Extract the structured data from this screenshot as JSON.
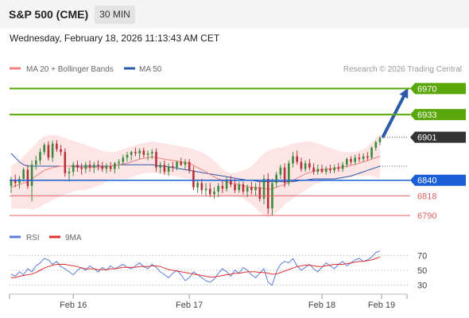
{
  "header": {
    "title": "S&P 500 (CME)",
    "interval": "30 MIN"
  },
  "timestamp": "Wednesday, February 18, 2026 11:13:43 AM CET",
  "legend": {
    "ma20_label": "MA 20 + Bollinger Bands",
    "ma50_label": "MA 50",
    "ma20_color": "#f08080",
    "ma50_color": "#2b5aa8"
  },
  "credit": "Research © 2026 Trading Central",
  "rsi_legend": {
    "rsi_label": "RSI",
    "ma9_label": "9MA",
    "rsi_color": "#5b7fd6",
    "ma9_color": "#e03030"
  },
  "colors": {
    "up_candle": "#3a8a3a",
    "down_candle": "#b8303a",
    "band_fill": "#fde0e0",
    "resistance": "#5aa70a",
    "support_blue": "#1a5fd6",
    "support_red": "#e06060",
    "current_price": "#333333",
    "arrow": "#2b5aa8"
  },
  "chart_data": [
    {
      "type": "candlestick",
      "title": "",
      "x_ticks": [
        "Feb 16",
        "Feb 17",
        "Feb 18",
        "Feb 19"
      ],
      "ylim": [
        6780,
        6985
      ],
      "levels": [
        {
          "value": 6970,
          "label": "6970",
          "kind": "resistance"
        },
        {
          "value": 6933,
          "label": "6933",
          "kind": "resistance"
        },
        {
          "value": 6901,
          "label": "6901",
          "kind": "current"
        },
        {
          "value": 6840,
          "label": "6840",
          "kind": "pivot"
        },
        {
          "value": 6818,
          "label": "6818",
          "kind": "support"
        },
        {
          "value": 6790,
          "label": "6790",
          "kind": "support"
        }
      ],
      "candles": [
        [
          6832,
          6845,
          6822,
          6840
        ],
        [
          6840,
          6848,
          6830,
          6836
        ],
        [
          6836,
          6846,
          6828,
          6842
        ],
        [
          6842,
          6858,
          6838,
          6855
        ],
        [
          6855,
          6862,
          6828,
          6832
        ],
        [
          6832,
          6868,
          6810,
          6862
        ],
        [
          6862,
          6875,
          6855,
          6868
        ],
        [
          6868,
          6885,
          6862,
          6880
        ],
        [
          6880,
          6893,
          6876,
          6890
        ],
        [
          6890,
          6895,
          6868,
          6872
        ],
        [
          6872,
          6896,
          6866,
          6892
        ],
        [
          6892,
          6897,
          6880,
          6884
        ],
        [
          6884,
          6890,
          6875,
          6880
        ],
        [
          6880,
          6885,
          6845,
          6850
        ],
        [
          6850,
          6858,
          6838,
          6852
        ],
        [
          6852,
          6866,
          6846,
          6862
        ],
        [
          6862,
          6868,
          6852,
          6858
        ],
        [
          6858,
          6864,
          6848,
          6856
        ],
        [
          6856,
          6866,
          6850,
          6862
        ],
        [
          6862,
          6868,
          6852,
          6858
        ],
        [
          6858,
          6866,
          6850,
          6862
        ],
        [
          6862,
          6868,
          6854,
          6860
        ],
        [
          6860,
          6866,
          6852,
          6856
        ],
        [
          6856,
          6864,
          6850,
          6860
        ],
        [
          6860,
          6866,
          6852,
          6856
        ],
        [
          6856,
          6866,
          6850,
          6864
        ],
        [
          6864,
          6870,
          6856,
          6866
        ],
        [
          6866,
          6876,
          6862,
          6872
        ],
        [
          6872,
          6880,
          6866,
          6876
        ],
        [
          6876,
          6882,
          6868,
          6880
        ],
        [
          6880,
          6886,
          6874,
          6878
        ],
        [
          6878,
          6885,
          6870,
          6882
        ],
        [
          6882,
          6886,
          6872,
          6876
        ],
        [
          6876,
          6882,
          6868,
          6878
        ],
        [
          6878,
          6884,
          6870,
          6880
        ],
        [
          6880,
          6885,
          6852,
          6858
        ],
        [
          6858,
          6866,
          6850,
          6862
        ],
        [
          6862,
          6868,
          6848,
          6852
        ],
        [
          6852,
          6864,
          6846,
          6860
        ],
        [
          6860,
          6866,
          6852,
          6858
        ],
        [
          6858,
          6868,
          6854,
          6866
        ],
        [
          6866,
          6872,
          6860,
          6862
        ],
        [
          6862,
          6870,
          6856,
          6866
        ],
        [
          6866,
          6870,
          6850,
          6854
        ],
        [
          6854,
          6860,
          6826,
          6830
        ],
        [
          6830,
          6840,
          6822,
          6836
        ],
        [
          6836,
          6842,
          6820,
          6826
        ],
        [
          6826,
          6836,
          6818,
          6828
        ],
        [
          6828,
          6836,
          6816,
          6820
        ],
        [
          6820,
          6830,
          6814,
          6824
        ],
        [
          6824,
          6836,
          6816,
          6832
        ],
        [
          6832,
          6840,
          6822,
          6828
        ],
        [
          6828,
          6844,
          6824,
          6840
        ],
        [
          6840,
          6846,
          6830,
          6834
        ],
        [
          6834,
          6842,
          6822,
          6826
        ],
        [
          6826,
          6838,
          6822,
          6834
        ],
        [
          6834,
          6838,
          6820,
          6824
        ],
        [
          6824,
          6834,
          6816,
          6830
        ],
        [
          6830,
          6838,
          6820,
          6826
        ],
        [
          6826,
          6836,
          6818,
          6830
        ],
        [
          6830,
          6838,
          6810,
          6814
        ],
        [
          6814,
          6848,
          6806,
          6842
        ],
        [
          6842,
          6850,
          6792,
          6800
        ],
        [
          6800,
          6842,
          6790,
          6836
        ],
        [
          6836,
          6852,
          6830,
          6848
        ],
        [
          6848,
          6862,
          6842,
          6858
        ],
        [
          6858,
          6864,
          6830,
          6836
        ],
        [
          6836,
          6868,
          6832,
          6864
        ],
        [
          6864,
          6880,
          6858,
          6874
        ],
        [
          6874,
          6882,
          6862,
          6866
        ],
        [
          6866,
          6872,
          6852,
          6856
        ],
        [
          6856,
          6868,
          6852,
          6864
        ],
        [
          6864,
          6870,
          6854,
          6858
        ],
        [
          6858,
          6864,
          6848,
          6852
        ],
        [
          6852,
          6862,
          6848,
          6856
        ],
        [
          6856,
          6862,
          6850,
          6852
        ],
        [
          6852,
          6860,
          6848,
          6856
        ],
        [
          6856,
          6862,
          6850,
          6854
        ],
        [
          6854,
          6862,
          6850,
          6858
        ],
        [
          6858,
          6864,
          6852,
          6856
        ],
        [
          6856,
          6866,
          6852,
          6862
        ],
        [
          6862,
          6872,
          6858,
          6870
        ],
        [
          6870,
          6874,
          6862,
          6866
        ],
        [
          6866,
          6876,
          6862,
          6872
        ],
        [
          6872,
          6878,
          6866,
          6870
        ],
        [
          6870,
          6878,
          6866,
          6874
        ],
        [
          6874,
          6880,
          6868,
          6872
        ],
        [
          6872,
          6888,
          6870,
          6886
        ],
        [
          6886,
          6896,
          6882,
          6894
        ],
        [
          6894,
          6902,
          6890,
          6900
        ]
      ],
      "ma20": [
        6830,
        6832,
        6834,
        6836,
        6838,
        6842,
        6846,
        6850,
        6854,
        6856,
        6858,
        6859,
        6860,
        6860,
        6860,
        6859,
        6859,
        6858,
        6858,
        6858,
        6858,
        6858,
        6858,
        6859,
        6860,
        6861,
        6862,
        6863,
        6864,
        6866,
        6868,
        6870,
        6871,
        6872,
        6873,
        6872,
        6871,
        6870,
        6869,
        6868,
        6867,
        6866,
        6865,
        6864,
        6861,
        6858,
        6855,
        6852,
        6848,
        6845,
        6842,
        6840,
        6838,
        6836,
        6835,
        6834,
        6832,
        6831,
        6830,
        6830,
        6829,
        6828,
        6827,
        6828,
        6830,
        6832,
        6834,
        6837,
        6840,
        6843,
        6846,
        6849,
        6851,
        6853,
        6854,
        6855,
        6856,
        6856,
        6857,
        6858,
        6859,
        6860,
        6861,
        6862,
        6864,
        6866,
        6868,
        6870,
        6872,
        6874
      ],
      "ma50": [
        6878,
        6872,
        6866,
        6862,
        6860,
        6860,
        6860,
        6860,
        6860,
        6860,
        6860,
        6860,
        6860,
        6860,
        6860,
        6860,
        6860,
        6860,
        6860,
        6860,
        6860,
        6860,
        6860,
        6860,
        6860,
        6861,
        6862,
        6862,
        6862,
        6862,
        6862,
        6862,
        6862,
        6862,
        6862,
        6861,
        6860,
        6860,
        6859,
        6858,
        6857,
        6856,
        6855,
        6854,
        6853,
        6852,
        6851,
        6850,
        6849,
        6848,
        6847,
        6846,
        6845,
        6844,
        6843,
        6842,
        6841,
        6840,
        6840,
        6839,
        6838,
        6838,
        6838,
        6838,
        6838,
        6838,
        6838,
        6838,
        6838,
        6839,
        6840,
        6840,
        6841,
        6842,
        6842,
        6842,
        6842,
        6842,
        6842,
        6843,
        6844,
        6845,
        6846,
        6848,
        6850,
        6852,
        6854,
        6856,
        6858,
        6860
      ],
      "band_upper": [
        6860,
        6864,
        6868,
        6874,
        6880,
        6886,
        6892,
        6898,
        6902,
        6904,
        6904,
        6904,
        6902,
        6900,
        6898,
        6896,
        6894,
        6892,
        6890,
        6888,
        6886,
        6884,
        6882,
        6880,
        6880,
        6880,
        6882,
        6884,
        6886,
        6888,
        6890,
        6892,
        6893,
        6894,
        6895,
        6894,
        6893,
        6892,
        6891,
        6890,
        6889,
        6888,
        6887,
        6886,
        6884,
        6882,
        6880,
        6876,
        6872,
        6868,
        6862,
        6856,
        6852,
        6850,
        6850,
        6852,
        6854,
        6856,
        6860,
        6866,
        6872,
        6878,
        6882,
        6884,
        6886,
        6886,
        6888,
        6890,
        6892,
        6893,
        6894,
        6895,
        6895,
        6894,
        6892,
        6890,
        6888,
        6886,
        6884,
        6882,
        6880,
        6880,
        6880,
        6880,
        6882,
        6884,
        6888,
        6894,
        6900,
        6906
      ],
      "band_lower": [
        6800,
        6800,
        6800,
        6800,
        6800,
        6798,
        6800,
        6802,
        6806,
        6808,
        6812,
        6814,
        6818,
        6820,
        6822,
        6824,
        6826,
        6826,
        6826,
        6828,
        6830,
        6832,
        6834,
        6838,
        6840,
        6842,
        6842,
        6842,
        6842,
        6844,
        6846,
        6848,
        6850,
        6850,
        6851,
        6850,
        6849,
        6848,
        6847,
        6846,
        6845,
        6844,
        6843,
        6842,
        6838,
        6834,
        6830,
        6828,
        6824,
        6822,
        6820,
        6818,
        6818,
        6818,
        6818,
        6816,
        6814,
        6810,
        6806,
        6800,
        6794,
        6790,
        6788,
        6790,
        6794,
        6800,
        6806,
        6810,
        6814,
        6818,
        6822,
        6826,
        6830,
        6834,
        6836,
        6838,
        6840,
        6840,
        6840,
        6841,
        6842,
        6843,
        6844,
        6846,
        6846,
        6846,
        6846,
        6846,
        6844,
        6842
      ],
      "projection": [
        6901,
        6970
      ]
    },
    {
      "type": "line",
      "title": "",
      "y_ticks": [
        70,
        50,
        30
      ],
      "ylim": [
        20,
        80
      ],
      "series": [
        {
          "name": "RSI",
          "values": [
            45,
            42,
            48,
            44,
            52,
            48,
            56,
            60,
            66,
            64,
            58,
            62,
            55,
            52,
            48,
            44,
            50,
            54,
            50,
            56,
            52,
            48,
            54,
            50,
            56,
            52,
            55,
            58,
            54,
            52,
            56,
            60,
            55,
            52,
            58,
            54,
            48,
            44,
            40,
            46,
            50,
            44,
            36,
            40,
            48,
            44,
            40,
            36,
            34,
            38,
            46,
            52,
            48,
            42,
            50,
            46,
            54,
            50,
            44,
            40,
            46,
            52,
            34,
            30,
            48,
            58,
            62,
            60,
            66,
            56,
            50,
            54,
            58,
            52,
            48,
            54,
            60,
            56,
            52,
            58,
            62,
            56,
            60,
            64,
            66,
            62,
            64,
            68,
            74,
            76
          ]
        },
        {
          "name": "9MA",
          "values": [
            40,
            40,
            42,
            43,
            44,
            45,
            47,
            50,
            53,
            55,
            57,
            58,
            58,
            58,
            57,
            56,
            55,
            53,
            52,
            52,
            52,
            51,
            51,
            51,
            52,
            52,
            53,
            54,
            54,
            54,
            54,
            55,
            55,
            55,
            56,
            56,
            55,
            53,
            51,
            50,
            49,
            48,
            47,
            46,
            45,
            44,
            43,
            42,
            41,
            41,
            42,
            43,
            44,
            45,
            46,
            46,
            47,
            48,
            48,
            48,
            47,
            47,
            46,
            45,
            45,
            47,
            49,
            51,
            53,
            55,
            56,
            57,
            57,
            56,
            55,
            55,
            56,
            57,
            58,
            58,
            58,
            59,
            60,
            61,
            62,
            62,
            63,
            64,
            66,
            68
          ]
        }
      ]
    }
  ]
}
